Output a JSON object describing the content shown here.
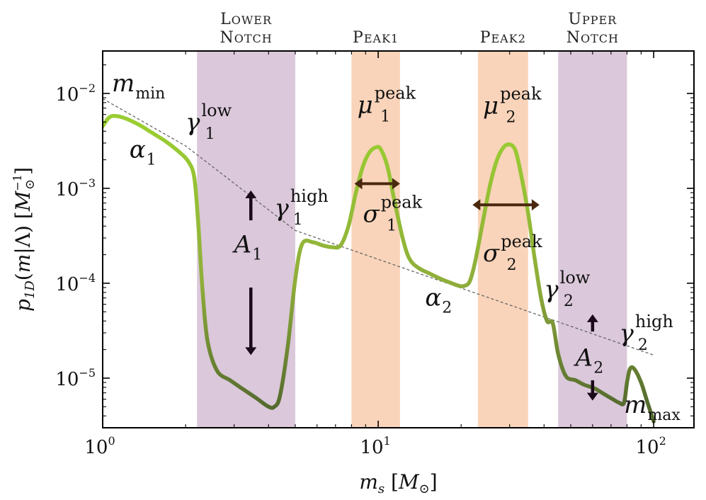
{
  "chart_data": {
    "type": "line",
    "xlabel": "m_s [M_⊙]",
    "ylabel": "p_1D(m|Λ) [M_⊙^-1]",
    "xscale": "log",
    "yscale": "log",
    "xlim": [
      1,
      140
    ],
    "ylim": [
      3e-06,
      0.028
    ],
    "x_ticks": [
      {
        "label_base": "10",
        "label_exp": "0"
      },
      {
        "label_base": "10",
        "label_exp": "1"
      },
      {
        "label_base": "10",
        "label_exp": "2"
      }
    ],
    "y_ticks": [
      {
        "label_base": "10",
        "label_exp": "−2"
      },
      {
        "label_base": "10",
        "label_exp": "−3"
      },
      {
        "label_base": "10",
        "label_exp": "−4"
      },
      {
        "label_base": "10",
        "label_exp": "−5"
      }
    ],
    "x_tick_values": [
      1,
      10,
      100
    ],
    "y_tick_values": [
      0.01,
      0.001,
      0.0001,
      1e-05
    ],
    "bands": [
      {
        "label_line1": "Lower",
        "label_line2": "Notch",
        "x0": 2.2,
        "x1": 5.0,
        "color": "#cfb6cf"
      },
      {
        "label_line1": "Peak1",
        "label_line2": "",
        "x0": 8.0,
        "x1": 12.0,
        "color": "#f7c6a3"
      },
      {
        "label_line1": "Peak2",
        "label_line2": "",
        "x0": 23.0,
        "x1": 35.0,
        "color": "#f7c6a3"
      },
      {
        "label_line1": "Upper",
        "label_line2": "Notch",
        "x0": 45.0,
        "x1": 80.0,
        "color": "#cfb6cf"
      }
    ],
    "series": [
      {
        "color_light": "#9acd32",
        "color_dark": "#556b2f",
        "x": [
          1.0,
          1.05,
          1.1,
          1.2,
          1.35,
          1.5,
          1.7,
          1.9,
          2.05,
          2.15,
          2.22,
          2.3,
          2.4,
          2.6,
          2.9,
          3.2,
          3.6,
          4.0,
          4.2,
          4.4,
          4.7,
          5.0,
          5.3,
          5.8,
          6.3,
          6.8,
          7.3,
          7.8,
          8.3,
          8.8,
          9.3,
          9.8,
          10.2,
          10.8,
          11.5,
          12.3,
          13.0,
          14.0,
          15.5,
          17.0,
          18.5,
          19.5,
          20.5,
          21.5,
          22.5,
          24.0,
          25.5,
          27.0,
          28.5,
          30.0,
          31.5,
          33.0,
          35.0,
          37.0,
          39.0,
          41.0,
          43.0,
          45.0,
          48.0,
          52.0,
          56.0,
          61.0,
          66.0,
          71.0,
          75.0,
          78.0,
          80.0,
          82.0,
          85.0,
          90.0,
          95.0,
          100.0
        ],
        "y": [
          0.0045,
          0.0055,
          0.0058,
          0.0055,
          0.0047,
          0.0039,
          0.0031,
          0.0024,
          0.0019,
          0.0013,
          0.00045,
          9e-05,
          2.5e-05,
          1.2e-05,
          9.5e-06,
          7.8e-06,
          6.2e-06,
          5e-06,
          5e-06,
          6.5e-06,
          2.2e-05,
          0.00011,
          0.00026,
          0.00027,
          0.00025,
          0.00024,
          0.00025,
          0.0004,
          0.0009,
          0.0017,
          0.0024,
          0.0027,
          0.0026,
          0.0017,
          0.0007,
          0.00029,
          0.00018,
          0.000145,
          0.000125,
          0.00011,
          0.0001,
          9.45e-05,
          9.35e-05,
          0.000105,
          0.00017,
          0.00045,
          0.0011,
          0.002,
          0.0027,
          0.0029,
          0.0025,
          0.0014,
          0.00055,
          0.00018,
          7e-05,
          4e-05,
          3.8e-05,
          1.8e-05,
          1.05e-05,
          9.5e-06,
          8.5e-06,
          7.8e-06,
          6.8e-06,
          6e-06,
          5.5e-06,
          5.5e-06,
          9e-06,
          1.25e-05,
          1.25e-05,
          9e-06,
          5.5e-06,
          3.5e-06
        ]
      }
    ],
    "reference_line": {
      "x": [
        1.0,
        2.0,
        5.0,
        100.0
      ],
      "y": [
        0.0088,
        0.0028,
        0.00036,
        1.75e-05
      ],
      "color": "#666666",
      "style": "dashed"
    },
    "arrows": [
      {
        "type": "double-horizontal",
        "x0": 8.2,
        "x1": 12.0,
        "y": 0.00112,
        "color": "#4a2810"
      },
      {
        "type": "double-horizontal",
        "x0": 22.0,
        "x1": 38.5,
        "y": 0.00067,
        "color": "#4a2810"
      },
      {
        "type": "up",
        "x": 3.45,
        "y0": 0.00046,
        "y1": 0.00095,
        "color": "#1a0a1a"
      },
      {
        "type": "down",
        "x": 3.45,
        "y0": 9e-05,
        "y1": 1.75e-05,
        "color": "#1a0a1a"
      },
      {
        "type": "up",
        "x": 60.0,
        "y0": 3.1e-05,
        "y1": 4.7e-05,
        "color": "#1a0a1a"
      },
      {
        "type": "down",
        "x": 60.0,
        "y0": 9.5e-06,
        "y1": 5.8e-06,
        "color": "#1a0a1a"
      }
    ],
    "annotations": [
      {
        "id": "mmin",
        "base": "m",
        "sub": "min",
        "sup": "",
        "x": 1.08,
        "y": 0.0105
      },
      {
        "id": "alpha1",
        "base": "α",
        "sub": "1",
        "sup": "",
        "x": 1.25,
        "y": 0.0021
      },
      {
        "id": "gamma1low",
        "base": "γ",
        "sub": "1",
        "sup": "low",
        "x": 2.0,
        "y": 0.0041
      },
      {
        "id": "gamma1high",
        "base": "γ",
        "sub": "1",
        "sup": "high",
        "x": 4.2,
        "y": 0.00051
      },
      {
        "id": "A1",
        "base": "A",
        "sub": "1",
        "sup": "",
        "x": 3.0,
        "y": 0.00021
      },
      {
        "id": "mu1",
        "base": "μ",
        "sub": "1",
        "sup": "peak",
        "x": 8.4,
        "y": 0.0062
      },
      {
        "id": "sigma1",
        "base": "σ",
        "sub": "1",
        "sup": "peak",
        "x": 8.8,
        "y": 0.00044
      },
      {
        "id": "mu2",
        "base": "μ",
        "sub": "2",
        "sup": "peak",
        "x": 24.0,
        "y": 0.0061
      },
      {
        "id": "sigma2",
        "base": "σ",
        "sub": "2",
        "sup": "peak",
        "x": 24.0,
        "y": 0.00017
      },
      {
        "id": "alpha2",
        "base": "α",
        "sub": "2",
        "sup": "",
        "x": 14.8,
        "y": 5.8e-05
      },
      {
        "id": "gamma2low",
        "base": "γ",
        "sub": "2",
        "sup": "low",
        "x": 40.0,
        "y": 7.1e-05
      },
      {
        "id": "gamma2high",
        "base": "γ",
        "sub": "2",
        "sup": "high",
        "x": 75.0,
        "y": 2.45e-05
      },
      {
        "id": "A2",
        "base": "A",
        "sub": "2",
        "sup": "",
        "x": 52.0,
        "y": 1.35e-05
      },
      {
        "id": "mmax",
        "base": "m",
        "sub": "max",
        "sup": "",
        "x": 78.0,
        "y": 4.3e-06
      }
    ]
  }
}
